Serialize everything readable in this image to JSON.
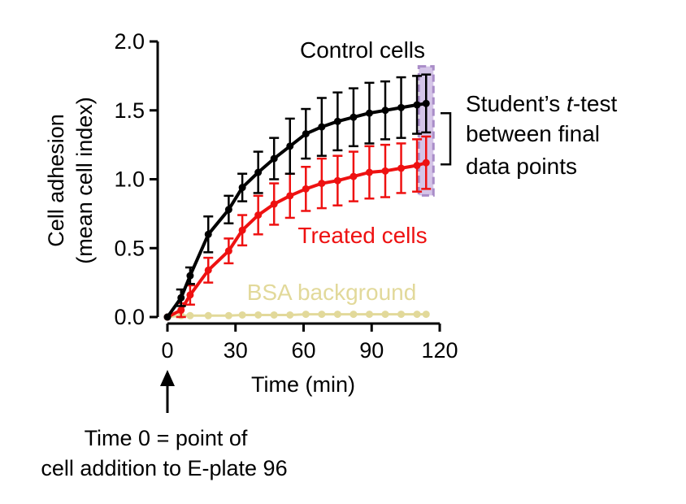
{
  "chart_data": {
    "type": "line",
    "xlabel": "Time (min)",
    "ylabel_line1": "Cell adhesion",
    "ylabel_line2": "(mean cell index)",
    "xlim": [
      0,
      120
    ],
    "ylim": [
      0,
      2.0
    ],
    "x_ticks": [
      0,
      30,
      60,
      90,
      120
    ],
    "x_tick_labels": [
      "0",
      "30",
      "60",
      "90",
      "120"
    ],
    "y_ticks": [
      0,
      0.5,
      1.0,
      1.5,
      2.0
    ],
    "y_tick_labels": [
      "0.0",
      "0.5",
      "1.0",
      "1.5",
      "2.0"
    ],
    "grid": false,
    "series": [
      {
        "name": "Control cells",
        "color": "#000000",
        "x": [
          0,
          6,
          10,
          18,
          27,
          33,
          40,
          47,
          54,
          61,
          68,
          75,
          82,
          89,
          96,
          103,
          110,
          114
        ],
        "y": [
          0.0,
          0.14,
          0.3,
          0.6,
          0.78,
          0.94,
          1.05,
          1.15,
          1.24,
          1.33,
          1.38,
          1.42,
          1.45,
          1.48,
          1.5,
          1.52,
          1.54,
          1.55
        ],
        "err": [
          0.0,
          0.06,
          0.06,
          0.13,
          0.1,
          0.1,
          0.15,
          0.15,
          0.2,
          0.18,
          0.21,
          0.21,
          0.21,
          0.22,
          0.21,
          0.22,
          0.21,
          0.21
        ]
      },
      {
        "name": "Treated cells",
        "color": "#ee1111",
        "x": [
          0,
          6,
          10,
          18,
          27,
          33,
          40,
          47,
          54,
          61,
          68,
          75,
          82,
          89,
          96,
          103,
          110,
          114
        ],
        "y": [
          0.0,
          0.05,
          0.16,
          0.34,
          0.48,
          0.63,
          0.74,
          0.82,
          0.88,
          0.93,
          0.97,
          0.99,
          1.02,
          1.05,
          1.06,
          1.08,
          1.1,
          1.12
        ],
        "err": [
          0.0,
          0.05,
          0.07,
          0.09,
          0.09,
          0.11,
          0.14,
          0.15,
          0.16,
          0.16,
          0.18,
          0.18,
          0.18,
          0.19,
          0.19,
          0.18,
          0.19,
          0.19
        ]
      },
      {
        "name": "BSA background",
        "color": "#e2d99a",
        "x": [
          0,
          6,
          10,
          18,
          27,
          33,
          40,
          47,
          54,
          61,
          68,
          75,
          82,
          89,
          96,
          103,
          110,
          114
        ],
        "y": [
          0.0,
          0.01,
          0.01,
          0.01,
          0.01,
          0.015,
          0.015,
          0.015,
          0.015,
          0.02,
          0.02,
          0.02,
          0.02,
          0.02,
          0.02,
          0.02,
          0.02,
          0.02
        ],
        "err": []
      }
    ],
    "annotations": {
      "ttest_prefix": "Student’s ",
      "ttest_italic": "t",
      "ttest_suffix": "-test",
      "ttest_line2": "between final",
      "ttest_line3": "data points",
      "highlight_color": "#a98cc8",
      "arrow_note_line1": "Time 0 = point of",
      "arrow_note_line2": "cell addition to E-plate 96"
    }
  }
}
